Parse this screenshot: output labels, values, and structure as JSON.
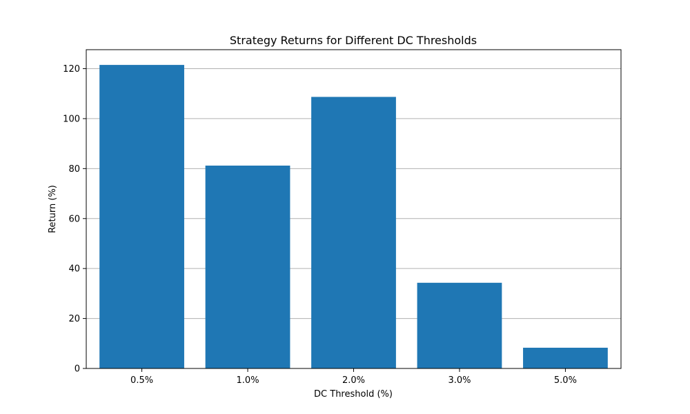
{
  "chart_data": {
    "type": "bar",
    "title": "Strategy Returns for Different DC Thresholds",
    "xlabel": "DC Threshold (%)",
    "ylabel": "Return (%)",
    "categories": [
      "0.5%",
      "1.0%",
      "2.0%",
      "3.0%",
      "5.0%"
    ],
    "values": [
      121.5,
      81.2,
      108.7,
      34.3,
      8.3
    ],
    "ylim": [
      0,
      127.6
    ],
    "yticks": [
      0,
      20,
      40,
      60,
      80,
      100,
      120
    ],
    "grid": "horizontal",
    "legend": "none",
    "bar_color": "#1f77b4",
    "grid_color": "#b0b0b0"
  }
}
